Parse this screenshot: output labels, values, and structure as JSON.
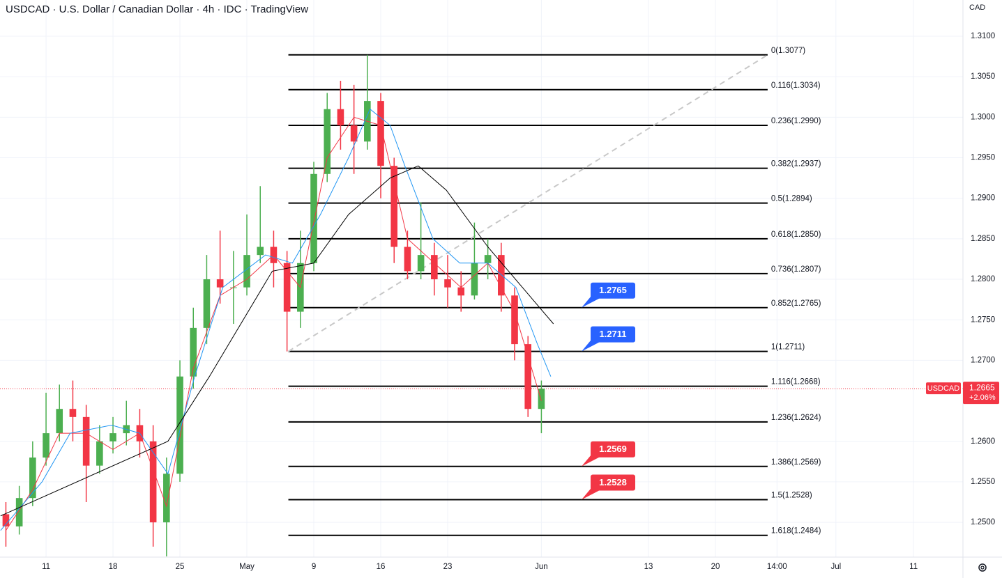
{
  "header": {
    "title": "USDCAD · U.S. Dollar / Canadian Dollar · 4h · IDC · TradingView",
    "currency": "CAD"
  },
  "chart_data": {
    "type": "candlestick",
    "x": [
      -3,
      -2,
      -1,
      0,
      1,
      2,
      3,
      4,
      5,
      6,
      7,
      8,
      9,
      10,
      11,
      12,
      13,
      14,
      15,
      16,
      17,
      18,
      19,
      20,
      21,
      22,
      23,
      24,
      25,
      26,
      27,
      28,
      29,
      30,
      31,
      32,
      33,
      34,
      35,
      36,
      37
    ],
    "open": [
      1.251,
      1.2495,
      1.253,
      1.258,
      1.261,
      1.264,
      1.263,
      1.257,
      1.26,
      1.261,
      1.262,
      1.26,
      1.25,
      1.256,
      1.268,
      1.274,
      1.28,
      1.279,
      1.279,
      1.283,
      1.284,
      1.282,
      1.276,
      1.282,
      1.293,
      1.301,
      1.299,
      1.297,
      1.302,
      1.294,
      1.284,
      1.281,
      1.283,
      1.28,
      1.279,
      1.278,
      1.282,
      1.283,
      1.278,
      1.272,
      1.264
    ],
    "high": [
      1.2525,
      1.2545,
      1.26,
      1.266,
      1.267,
      1.2675,
      1.2645,
      1.262,
      1.263,
      1.265,
      1.264,
      1.262,
      1.258,
      1.27,
      1.2765,
      1.283,
      1.286,
      1.2835,
      1.288,
      1.2915,
      1.286,
      1.2835,
      1.286,
      1.2945,
      1.303,
      1.3045,
      1.304,
      1.3077,
      1.303,
      1.295,
      1.286,
      1.2895,
      1.2845,
      1.283,
      1.281,
      1.287,
      1.285,
      1.2845,
      1.279,
      1.273,
      1.2675
    ],
    "low": [
      1.247,
      1.2485,
      1.252,
      1.257,
      1.26,
      1.26,
      1.2525,
      1.256,
      1.2585,
      1.2595,
      1.258,
      1.247,
      1.2458,
      1.255,
      1.2665,
      1.272,
      1.277,
      1.2745,
      1.278,
      1.282,
      1.279,
      1.2711,
      1.274,
      1.281,
      1.292,
      1.296,
      1.293,
      1.296,
      1.29,
      1.282,
      1.28,
      1.28,
      1.278,
      1.2765,
      1.276,
      1.2775,
      1.28,
      1.276,
      1.27,
      1.263,
      1.261
    ],
    "close": [
      1.2495,
      1.253,
      1.258,
      1.261,
      1.264,
      1.263,
      1.257,
      1.26,
      1.261,
      1.262,
      1.26,
      1.25,
      1.256,
      1.268,
      1.274,
      1.28,
      1.279,
      1.279,
      1.283,
      1.284,
      1.282,
      1.276,
      1.282,
      1.293,
      1.301,
      1.299,
      1.297,
      1.302,
      1.294,
      1.284,
      1.281,
      1.283,
      1.28,
      1.279,
      1.278,
      1.282,
      1.283,
      1.278,
      1.272,
      1.264,
      1.2665
    ],
    "up_color": "#4caf50",
    "down_color": "#f23645",
    "xlim": [
      -3.44,
      68.49
    ],
    "xticks": [
      {
        "value": 0,
        "label": "11"
      },
      {
        "value": 5,
        "label": "18"
      },
      {
        "value": 10,
        "label": "25"
      },
      {
        "value": 15,
        "label": "May"
      },
      {
        "value": 20,
        "label": "9"
      },
      {
        "value": 25,
        "label": "16"
      },
      {
        "value": 30,
        "label": "23"
      },
      {
        "value": 37,
        "label": "Jun"
      },
      {
        "value": 45,
        "label": "13"
      },
      {
        "value": 50,
        "label": "20"
      },
      {
        "value": 54.6,
        "label": "14:00"
      },
      {
        "value": 59,
        "label": "Jul"
      },
      {
        "value": 64.8,
        "label": "11"
      }
    ],
    "ylim": [
      1.24571,
      1.31447
    ],
    "yticks": [
      {
        "value": 1.31,
        "label": "1.3100"
      },
      {
        "value": 1.305,
        "label": "1.3050"
      },
      {
        "value": 1.3,
        "label": "1.3000"
      },
      {
        "value": 1.295,
        "label": "1.2950"
      },
      {
        "value": 1.29,
        "label": "1.2900"
      },
      {
        "value": 1.285,
        "label": "1.2850"
      },
      {
        "value": 1.28,
        "label": "1.2800"
      },
      {
        "value": 1.275,
        "label": "1.2750"
      },
      {
        "value": 1.27,
        "label": "1.2700"
      },
      {
        "value": 1.26,
        "label": "1.2600"
      },
      {
        "value": 1.255,
        "label": "1.2550"
      },
      {
        "value": 1.25,
        "label": "1.2500"
      }
    ],
    "grid": true,
    "lines": [
      {
        "color": "#f23645",
        "x": [
          -3,
          -1,
          1,
          3,
          5,
          7,
          9,
          11,
          13,
          15,
          17,
          19,
          21,
          23,
          25,
          27,
          29,
          31,
          33,
          35,
          37
        ],
        "values": [
          1.249,
          1.254,
          1.261,
          1.261,
          1.259,
          1.261,
          1.252,
          1.269,
          1.278,
          1.28,
          1.283,
          1.279,
          1.295,
          1.3,
          1.299,
          1.285,
          1.282,
          1.279,
          1.282,
          1.276,
          1.265
        ]
      },
      {
        "color": "#2196f3",
        "x": [
          -3.4,
          -0.3,
          1.8,
          4.9,
          7.0,
          9.1,
          11.1,
          13.2,
          16.4,
          18.4,
          20.5,
          22.6,
          24.2,
          25.7,
          26.8,
          28.9,
          30.9,
          33.0,
          35.1,
          36.7,
          37.7
        ],
        "values": [
          1.249,
          1.255,
          1.261,
          1.262,
          1.261,
          1.256,
          1.268,
          1.279,
          1.283,
          1.282,
          1.288,
          1.295,
          1.301,
          1.299,
          1.294,
          1.285,
          1.282,
          1.282,
          1.279,
          1.272,
          1.268
        ]
      },
      {
        "color": "#000000",
        "x": [
          -3.4,
          9.1,
          12.2,
          16.9,
          20,
          22.6,
          25.7,
          27.8,
          29.9,
          33,
          36.1,
          37.9
        ],
        "values": [
          1.2508,
          1.26,
          1.268,
          1.281,
          1.282,
          1.288,
          1.2925,
          1.294,
          1.291,
          1.284,
          1.278,
          1.2745
        ]
      }
    ],
    "trend_line": {
      "x": [
        18.1,
        53.9
      ],
      "values": [
        1.2711,
        1.3077
      ]
    },
    "fib_levels": [
      {
        "value": 1.3077,
        "label": "0(1.3077)"
      },
      {
        "value": 1.3034,
        "label": "0.116(1.3034)"
      },
      {
        "value": 1.299,
        "label": "0.236(1.2990)"
      },
      {
        "value": 1.2937,
        "label": "0.382(1.2937)"
      },
      {
        "value": 1.2894,
        "label": "0.5(1.2894)"
      },
      {
        "value": 1.285,
        "label": "0.618(1.2850)"
      },
      {
        "value": 1.2807,
        "label": "0.736(1.2807)"
      },
      {
        "value": 1.2765,
        "label": "0.852(1.2765)"
      },
      {
        "value": 1.2711,
        "label": "1(1.2711)"
      },
      {
        "value": 1.2668,
        "label": "1.116(1.2668)"
      },
      {
        "value": 1.2624,
        "label": "1.236(1.2624)"
      },
      {
        "value": 1.2569,
        "label": "1.386(1.2569)"
      },
      {
        "value": 1.2528,
        "label": "1.5(1.2528)"
      },
      {
        "value": 1.2484,
        "label": "1.618(1.2484)"
      }
    ],
    "callouts": [
      {
        "value": 1.2765,
        "color": "#2962ff"
      },
      {
        "value": 1.2711,
        "color": "#2962ff"
      },
      {
        "value": 1.2569,
        "color": "#f23645"
      },
      {
        "value": 1.2528,
        "color": "#f23645"
      }
    ],
    "last_price": {
      "symbol": "USDCAD",
      "value": 1.2665,
      "change": "+2.06%",
      "color": "#f23645"
    }
  }
}
